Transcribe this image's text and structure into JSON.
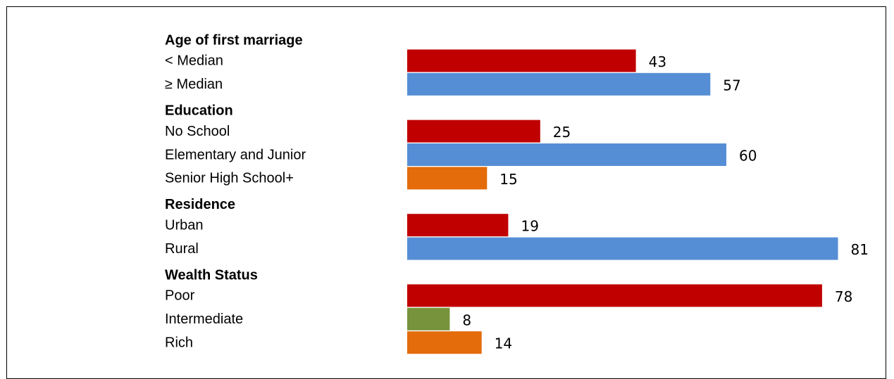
{
  "chart_data": {
    "type": "bar",
    "orientation": "horizontal",
    "title": "",
    "xlabel": "",
    "ylabel": "",
    "xlim": [
      0,
      81
    ],
    "grid": false,
    "legend": "none",
    "groups": [
      {
        "heading": "Age of first marriage",
        "bars": [
          {
            "label": "< Median",
            "value": 43,
            "color": "#c00000"
          },
          {
            "label": "≥ Median",
            "value": 57,
            "color": "#558ed5"
          }
        ]
      },
      {
        "heading": "Education",
        "bars": [
          {
            "label": "No School",
            "value": 25,
            "color": "#c00000"
          },
          {
            "label": "Elementary and Junior",
            "value": 60,
            "color": "#558ed5"
          },
          {
            "label": "Senior High School+",
            "value": 15,
            "color": "#e46c0a"
          }
        ]
      },
      {
        "heading": "Residence",
        "bars": [
          {
            "label": "Urban",
            "value": 19,
            "color": "#c00000"
          },
          {
            "label": "Rural",
            "value": 81,
            "color": "#558ed5"
          }
        ]
      },
      {
        "heading": "Wealth Status",
        "bars": [
          {
            "label": "Poor",
            "value": 78,
            "color": "#c00000"
          },
          {
            "label": "Intermediate",
            "value": 8,
            "color": "#77933c"
          },
          {
            "label": "Rich",
            "value": 14,
            "color": "#e46c0a"
          }
        ]
      }
    ]
  }
}
